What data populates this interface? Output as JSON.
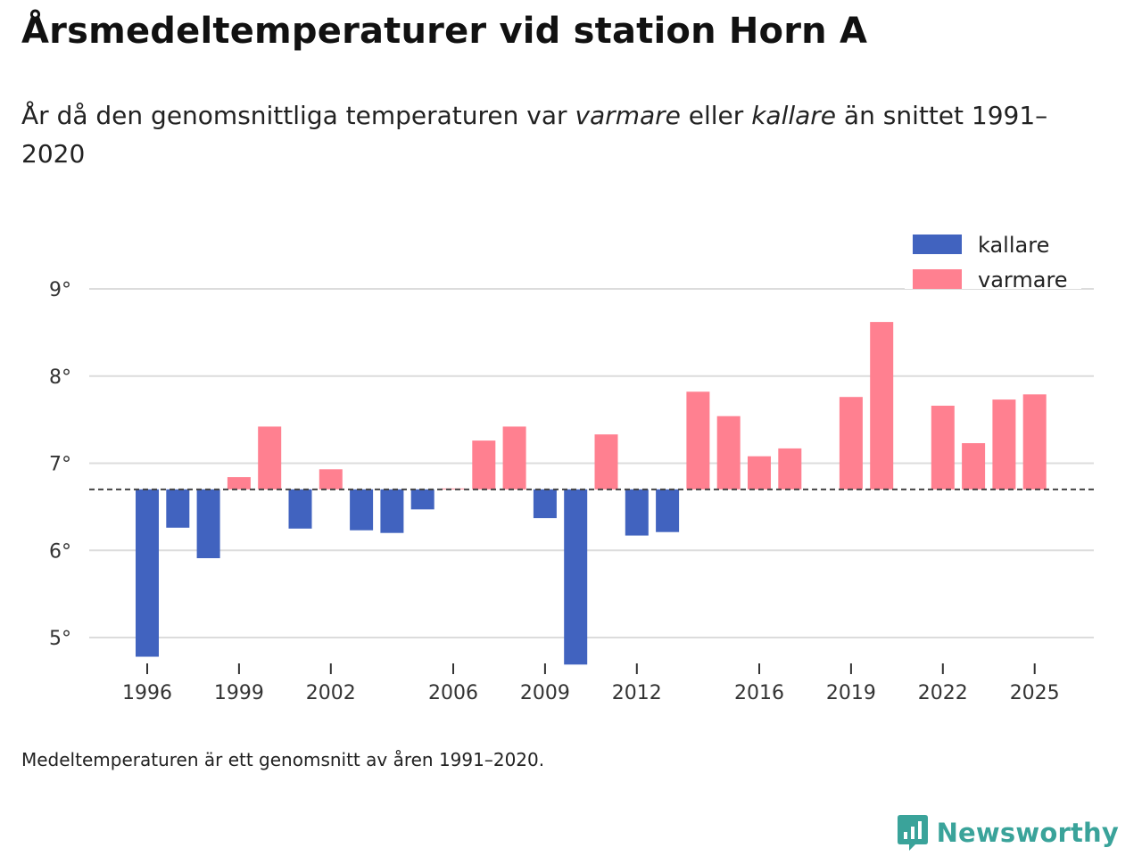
{
  "header": {
    "title": "Årsmedeltemperaturer vid station Horn A",
    "subtitle_before": "År då den genomsnittliga temperaturen var ",
    "subtitle_warm": "varmare",
    "subtitle_mid": " eller ",
    "subtitle_cold": "kallare",
    "subtitle_after": " än snittet 1991–2020"
  },
  "footer": {
    "note": "Medeltemperaturen är ett genomsnitt av åren 1991–2020.",
    "brand": "Newsworthy"
  },
  "colors": {
    "cold": "#4163bf",
    "warm": "#ff8090",
    "grid": "#dcdcdc",
    "baseline": "#444444",
    "brand": "#3aa39a"
  },
  "chart_data": {
    "type": "bar",
    "title": "Årsmedeltemperaturer vid station Horn A",
    "xlabel": "",
    "ylabel": "",
    "baseline": 6.7,
    "baseline_label": "snittet 1991–2020",
    "ylim": [
      4.7,
      9.0
    ],
    "y_ticks": [
      5,
      6,
      7,
      8,
      9
    ],
    "y_tick_suffix": "°",
    "x_range": [
      1995,
      2026
    ],
    "x_ticks": [
      1996,
      1999,
      2002,
      2006,
      2009,
      2012,
      2016,
      2019,
      2022,
      2025
    ],
    "legend": {
      "position": "top-right",
      "items": [
        {
          "key": "cold",
          "label": "kallare"
        },
        {
          "key": "warm",
          "label": "varmare"
        }
      ]
    },
    "grid": true,
    "series": [
      {
        "year": 1996,
        "value": 4.78
      },
      {
        "year": 1997,
        "value": 6.26
      },
      {
        "year": 1998,
        "value": 5.91
      },
      {
        "year": 1999,
        "value": 6.84
      },
      {
        "year": 2000,
        "value": 7.42
      },
      {
        "year": 2001,
        "value": 6.25
      },
      {
        "year": 2002,
        "value": 6.93
      },
      {
        "year": 2003,
        "value": 6.23
      },
      {
        "year": 2004,
        "value": 6.2
      },
      {
        "year": 2005,
        "value": 6.47
      },
      {
        "year": 2006,
        "value": 6.71
      },
      {
        "year": 2007,
        "value": 7.26
      },
      {
        "year": 2008,
        "value": 7.42
      },
      {
        "year": 2009,
        "value": 6.37
      },
      {
        "year": 2010,
        "value": 4.69
      },
      {
        "year": 2011,
        "value": 7.33
      },
      {
        "year": 2012,
        "value": 6.17
      },
      {
        "year": 2013,
        "value": 6.21
      },
      {
        "year": 2014,
        "value": 7.82
      },
      {
        "year": 2015,
        "value": 7.54
      },
      {
        "year": 2016,
        "value": 7.08
      },
      {
        "year": 2017,
        "value": 7.17
      },
      {
        "year": 2019,
        "value": 7.76
      },
      {
        "year": 2020,
        "value": 8.62
      },
      {
        "year": 2022,
        "value": 7.66
      },
      {
        "year": 2023,
        "value": 7.23
      },
      {
        "year": 2024,
        "value": 7.73
      },
      {
        "year": 2025,
        "value": 7.79
      }
    ]
  }
}
